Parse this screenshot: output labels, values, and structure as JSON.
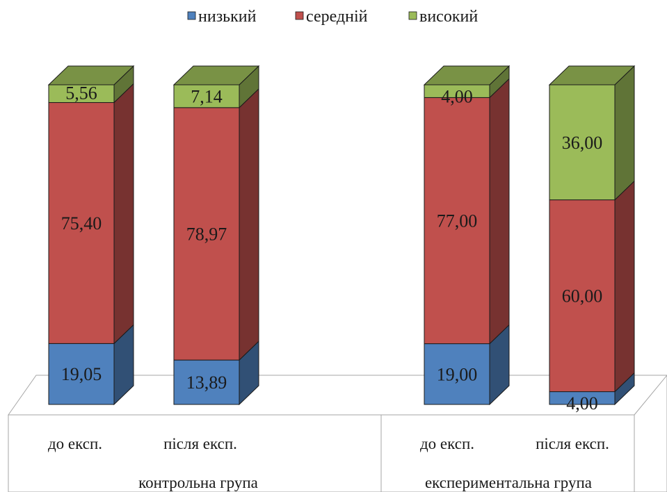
{
  "chart_data": {
    "type": "bar",
    "stacked": true,
    "three_d": true,
    "legend": {
      "placement": "top",
      "entries": [
        "низький",
        "середній",
        "високий"
      ]
    },
    "categories": [
      "до експ.",
      "після експ.",
      "до експ.",
      "після експ."
    ],
    "groups": [
      {
        "label": "контрольна група",
        "categories": [
          "до експ.",
          "після експ."
        ]
      },
      {
        "label": "експериментальна група",
        "categories": [
          "до експ.",
          "після експ."
        ]
      }
    ],
    "series": [
      {
        "name": "низький",
        "color": "#4f81bd",
        "values": [
          19.05,
          13.89,
          19.0,
          4.0
        ],
        "labels": [
          "19,05",
          "13,89",
          "19,00",
          "4,00"
        ]
      },
      {
        "name": "середній",
        "color": "#c0504d",
        "values": [
          75.4,
          78.97,
          77.0,
          60.0
        ],
        "labels": [
          "75,40",
          "78,97",
          "77,00",
          "60,00"
        ]
      },
      {
        "name": "високий",
        "color": "#9bbb59",
        "values": [
          5.56,
          7.14,
          4.0,
          36.0
        ],
        "labels": [
          "5,56",
          "7,14",
          "4,00",
          "36,00"
        ]
      }
    ],
    "ylim": [
      0,
      100
    ],
    "grid": false
  }
}
